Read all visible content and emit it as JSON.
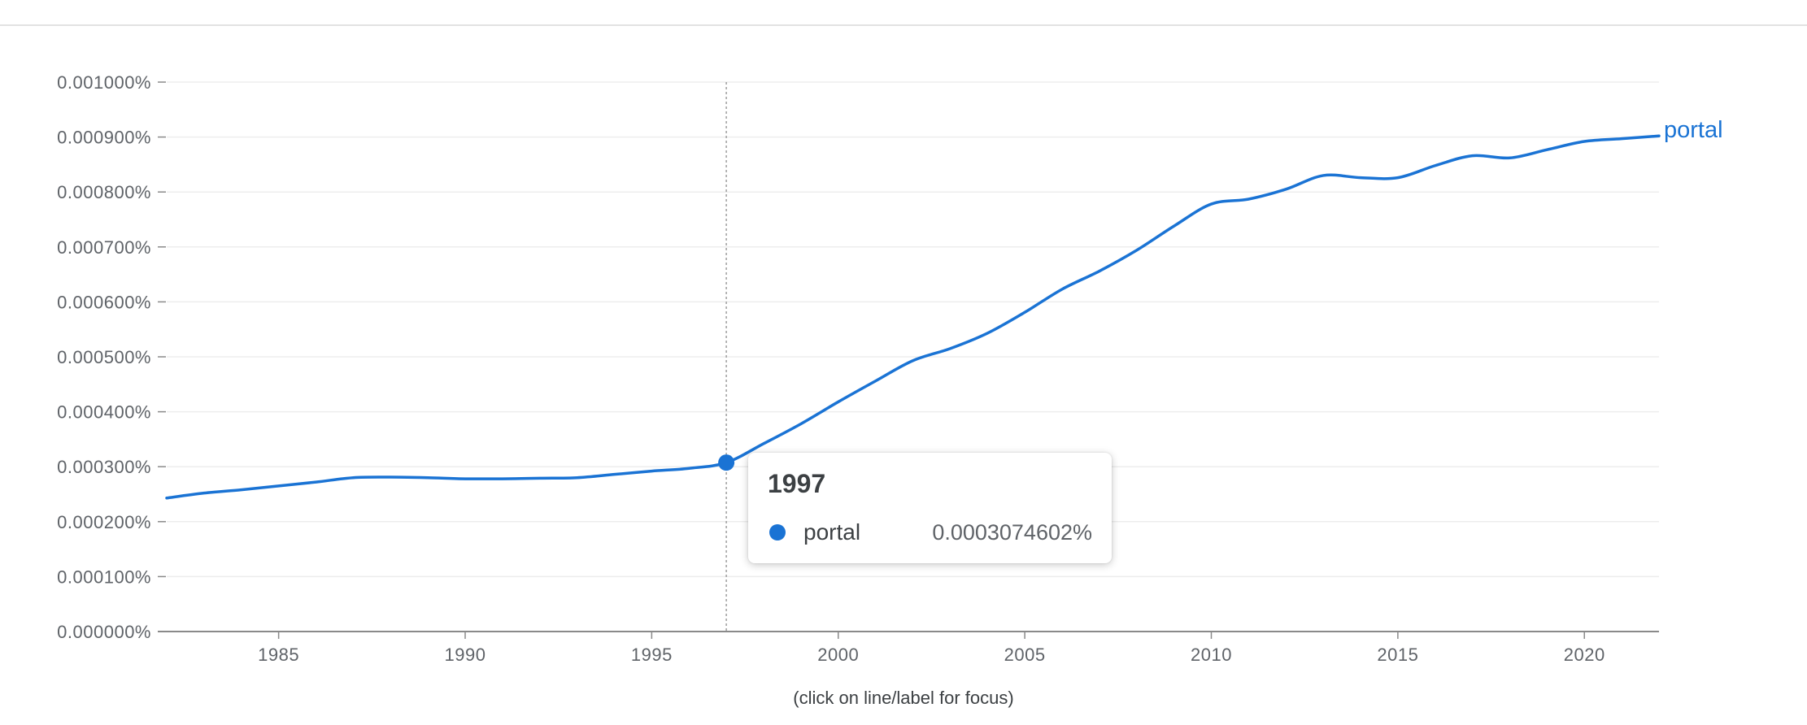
{
  "chart_data": {
    "type": "line",
    "x": [
      1982,
      1983,
      1984,
      1985,
      1986,
      1987,
      1988,
      1989,
      1990,
      1991,
      1992,
      1993,
      1994,
      1995,
      1996,
      1997,
      1998,
      1999,
      2000,
      2001,
      2002,
      2003,
      2004,
      2005,
      2006,
      2007,
      2008,
      2009,
      2010,
      2011,
      2012,
      2013,
      2014,
      2015,
      2016,
      2017,
      2018,
      2019,
      2020,
      2021,
      2022
    ],
    "series": [
      {
        "name": "portal",
        "color": "#1a73d4",
        "values": [
          0.000243,
          0.000252,
          0.000258,
          0.000265,
          0.000272,
          0.00028,
          0.000281,
          0.00028,
          0.000278,
          0.000278,
          0.000279,
          0.00028,
          0.000286,
          0.000292,
          0.000297,
          0.0003074602,
          0.000342,
          0.000378,
          0.000418,
          0.000456,
          0.000493,
          0.000515,
          0.000543,
          0.000581,
          0.000623,
          0.000656,
          0.000694,
          0.000738,
          0.000778,
          0.000787,
          0.000805,
          0.00083,
          0.000826,
          0.000826,
          0.000848,
          0.000866,
          0.000862,
          0.000877,
          0.000892,
          0.000897,
          0.000902
        ]
      }
    ],
    "ylim": [
      0,
      0.001
    ],
    "xlim": [
      1982,
      2022
    ],
    "y_ticks": [
      0,
      0.0001,
      0.0002,
      0.0003,
      0.0004,
      0.0005,
      0.0006,
      0.0007,
      0.0008,
      0.0009,
      0.001
    ],
    "y_tick_labels": [
      "0.000000%",
      "0.000100%",
      "0.000200%",
      "0.000300%",
      "0.000400%",
      "0.000500%",
      "0.000600%",
      "0.000700%",
      "0.000800%",
      "0.000900%",
      "0.001000%"
    ],
    "x_ticks": [
      1985,
      1990,
      1995,
      2000,
      2005,
      2010,
      2015,
      2020
    ],
    "x_tick_labels": [
      "1985",
      "1990",
      "1995",
      "2000",
      "2005",
      "2010",
      "2015",
      "2020"
    ],
    "grid": true,
    "hover_x": 1997
  },
  "tooltip": {
    "year": "1997",
    "series_name": "portal",
    "value": "0.0003074602%"
  },
  "footnote": "(click on line/label for focus)"
}
